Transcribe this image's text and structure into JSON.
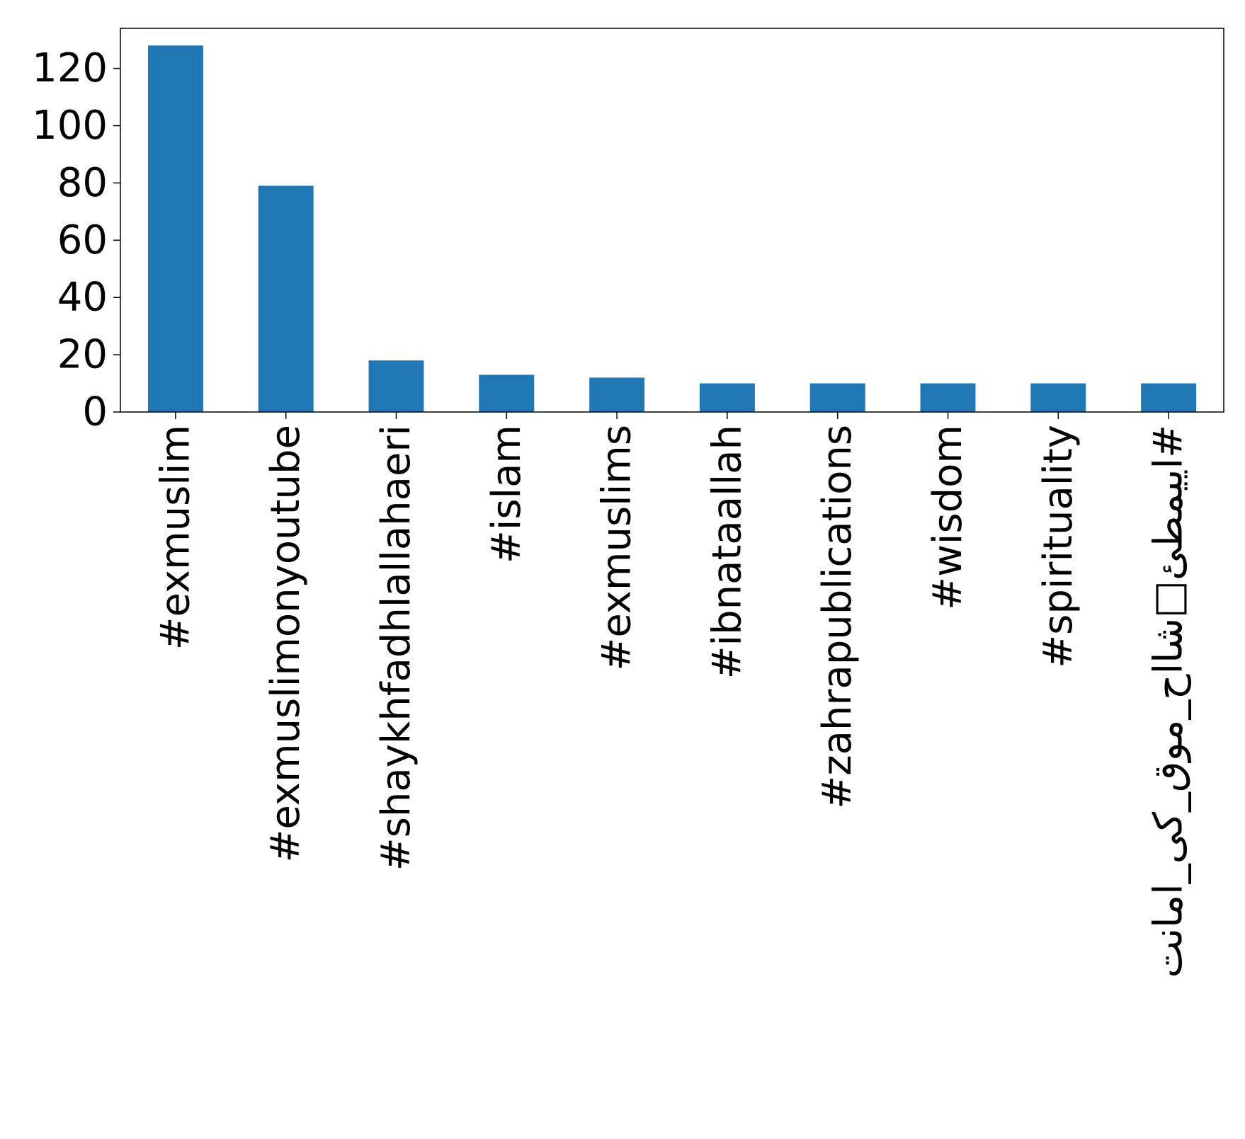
{
  "chart_data": {
    "type": "bar",
    "title": "",
    "xlabel": "",
    "ylabel": "",
    "categories": [
      "#exmuslim",
      "#exmuslimonyoutube",
      "#shaykhfadhlallahaeri",
      "#islam",
      "#exmuslims",
      "#ibnataallah",
      "#zahrapublications",
      "#wisdom",
      "#spirituality",
      "#اییمطئ□شااح_موق_کی_امانت"
    ],
    "values": [
      128,
      79,
      18,
      13,
      12,
      10,
      10,
      10,
      10,
      10
    ],
    "ylim": [
      0,
      134
    ],
    "yticks": [
      0,
      20,
      40,
      60,
      80,
      100,
      120
    ],
    "bar_color": "#1f77b4",
    "grid": false,
    "legend": "none"
  }
}
